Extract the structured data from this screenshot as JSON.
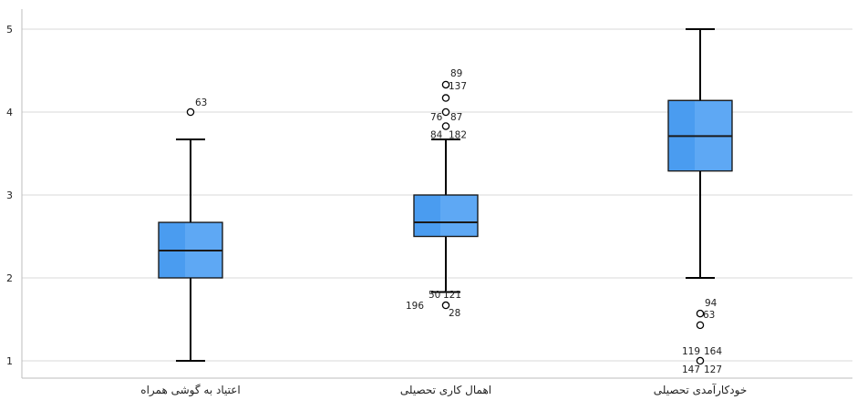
{
  "chart_data": {
    "type": "box",
    "title": "",
    "xlabel": "",
    "ylabel": "",
    "ylim": [
      0.85,
      5.15
    ],
    "yticks": [
      1,
      2,
      3,
      4,
      5
    ],
    "grid": true,
    "box_color": "#4a9cf0",
    "box_highlight": "#6fb3f7",
    "categories": [
      "اعتیاد به گوشی همراه",
      "اهمال کاری تحصیلی",
      "خودکارآمدی تحصیلی"
    ],
    "boxes": [
      {
        "min": 1.0,
        "q1": 2.0,
        "median": 2.33,
        "q3": 2.67,
        "max": 3.67,
        "outliers": [
          {
            "value": 4.0,
            "labels": [
              "63"
            ]
          }
        ]
      },
      {
        "min": 1.83,
        "q1": 2.5,
        "median": 2.67,
        "q3": 3.0,
        "max": 3.67,
        "outliers": [
          {
            "value": 4.33,
            "labels": [
              "89",
              "137"
            ]
          },
          {
            "value": 4.17,
            "labels": []
          },
          {
            "value": 4.0,
            "labels": [
              "76",
              "87"
            ]
          },
          {
            "value": 3.83,
            "labels": [
              "84",
              "182"
            ]
          },
          {
            "value": 1.67,
            "labels": [
              "196",
              "50",
              "121",
              "28"
            ]
          }
        ]
      },
      {
        "min": 2.0,
        "q1": 3.29,
        "median": 3.71,
        "q3": 4.14,
        "max": 5.0,
        "outliers": [
          {
            "value": 1.57,
            "labels": [
              "94",
              "63"
            ]
          },
          {
            "value": 1.43,
            "labels": []
          },
          {
            "value": 1.0,
            "labels": [
              "119",
              "164",
              "147",
              "127"
            ]
          }
        ]
      }
    ]
  }
}
